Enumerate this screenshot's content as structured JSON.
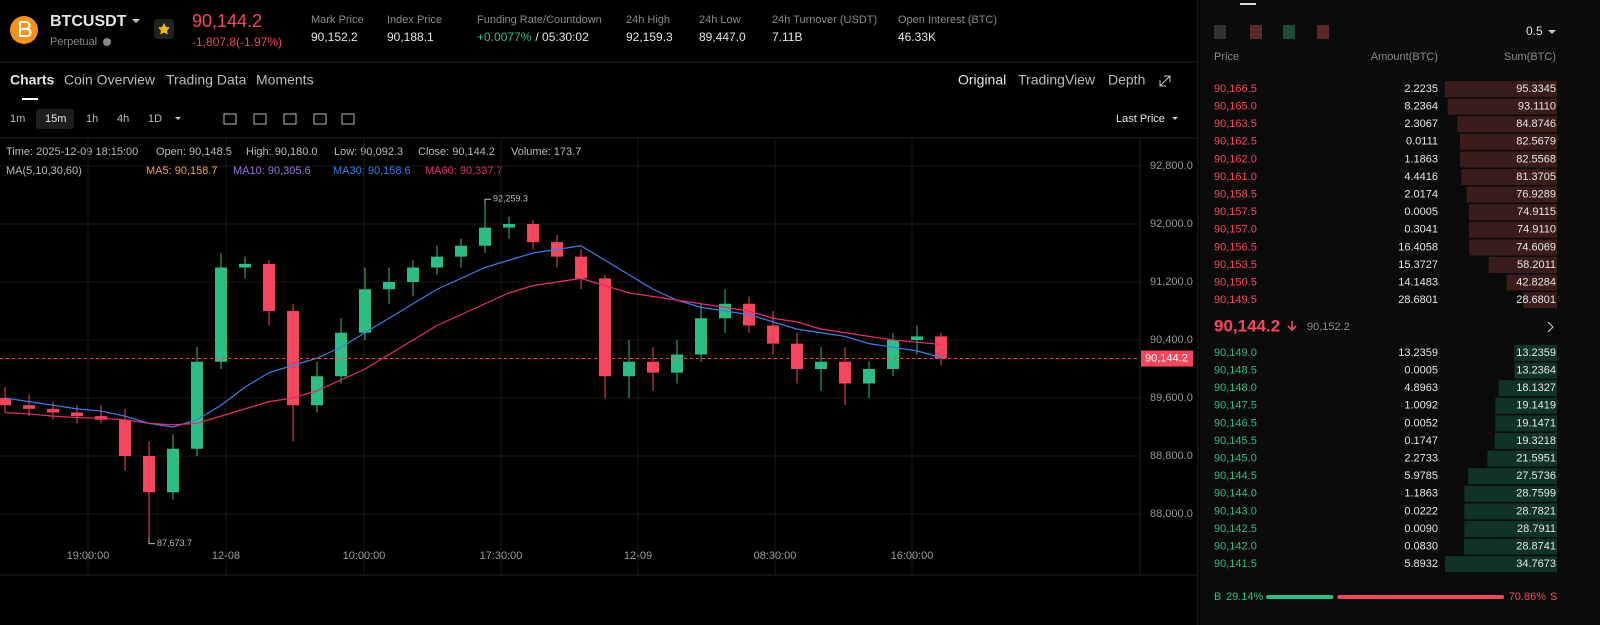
{
  "header": {
    "symbol": "BTCUSDT",
    "contract": "Perpetual",
    "price": "90,144.2",
    "change": "-1,807.8(-1.97%)",
    "stats": [
      {
        "label": "Mark Price",
        "value": "90,152.2"
      },
      {
        "label": "Index Price",
        "value": "90,188.1"
      },
      {
        "label": "Funding Rate/Countdown",
        "value": "+0.0077%",
        "extra": "/ 05:30:02"
      },
      {
        "label": "24h High",
        "value": "92,159.3"
      },
      {
        "label": "24h Low",
        "value": "89,447.0"
      },
      {
        "label": "24h Turnover (USDT)",
        "value": "7.11B"
      },
      {
        "label": "Open Interest (BTC)",
        "value": "46.33K"
      }
    ]
  },
  "tabs": [
    "Charts",
    "Coin Overview",
    "Trading Data",
    "Moments"
  ],
  "views": [
    "Original",
    "TradingView",
    "Depth"
  ],
  "intervals": [
    "1m",
    "15m",
    "1h",
    "4h",
    "1D"
  ],
  "price_type": "Last Price",
  "info": [
    "Time: 2025-12-09 18:15:00",
    "Open: 90,148.5",
    "High: 90,180.0",
    "Low: 90,092.3",
    "Close: 90,144.2",
    "Volume: 173.7"
  ],
  "ma_legend": {
    "title": "MA(5,10,30,60)",
    "items": [
      "MA5: 90,158.7",
      "MA10: 90,305.6",
      "MA30: 90,158.6",
      "MA60: 90,337.7"
    ]
  },
  "chart_data": {
    "type": "candlestick",
    "x_labels": [
      "19:00:00",
      "12-08",
      "10:00:00",
      "17:30:00",
      "12-09",
      "08:30:00",
      "16:00:00"
    ],
    "ylim": [
      87400,
      93200
    ],
    "yticks": [
      {
        "value": 88000,
        "label": "88,000.0"
      },
      {
        "value": 88800,
        "label": "88,800.0"
      },
      {
        "value": 89600,
        "label": "89,600.0"
      },
      {
        "value": 90400,
        "label": "90,400.0"
      },
      {
        "value": 91200,
        "label": "91,200.0"
      },
      {
        "value": 92000,
        "label": "92,000.0"
      },
      {
        "value": 92800,
        "label": "92,800.0"
      }
    ],
    "last_price": {
      "value": 90144.2,
      "label": "90,144.2"
    },
    "up_color": "#2ebd85",
    "down_color": "#f6465d",
    "open": [
      89600,
      89500,
      89450,
      89400,
      89350,
      89300,
      88800,
      88300,
      88900,
      90100,
      91400,
      91450,
      90800,
      89500,
      89900,
      90500,
      91100,
      91200,
      91400,
      91550,
      91700,
      91950,
      92000,
      91750,
      91550,
      91250,
      89900,
      90100,
      89950,
      90200,
      90700,
      90900,
      90600,
      90350,
      90000,
      90100,
      89800,
      90000,
      90400,
      90450
    ],
    "high": [
      89750,
      89650,
      89550,
      89500,
      89500,
      89450,
      89000,
      89100,
      90300,
      91600,
      91550,
      91500,
      90900,
      90100,
      90700,
      91400,
      91400,
      91500,
      91700,
      91800,
      92259.3,
      92100,
      92050,
      91850,
      91650,
      91300,
      90400,
      90300,
      90400,
      90900,
      91100,
      91000,
      90800,
      90500,
      90300,
      90300,
      90100,
      90500,
      90600,
      90500
    ],
    "low": [
      89400,
      89350,
      89300,
      89250,
      89250,
      88600,
      87673.7,
      88200,
      88800,
      90000,
      91250,
      90600,
      89000,
      89400,
      89800,
      90400,
      90900,
      91000,
      91300,
      91400,
      91600,
      91800,
      91650,
      91400,
      91100,
      89600,
      89600,
      89700,
      89800,
      90100,
      90500,
      90500,
      90200,
      89800,
      89700,
      89500,
      89600,
      89900,
      90200,
      90050
    ],
    "close": [
      89500,
      89450,
      89400,
      89350,
      89300,
      88800,
      88300,
      88900,
      90100,
      91400,
      91450,
      90800,
      89500,
      89900,
      90500,
      91100,
      91200,
      91400,
      91550,
      91700,
      91950,
      92000,
      91750,
      91550,
      91250,
      89900,
      90100,
      89950,
      90200,
      90700,
      90900,
      90600,
      90350,
      90000,
      90100,
      89800,
      90000,
      90400,
      90450,
      90144.2
    ],
    "series": [
      {
        "name": "MA30",
        "color": "#3d7ee6",
        "values": [
          89600,
          89550,
          89500,
          89450,
          89420,
          89350,
          89250,
          89200,
          89300,
          89500,
          89750,
          89950,
          90050,
          90150,
          90300,
          90500,
          90700,
          90900,
          91100,
          91250,
          91400,
          91500,
          91600,
          91650,
          91700,
          91500,
          91300,
          91100,
          90950,
          90850,
          90800,
          90750,
          90650,
          90550,
          90500,
          90450,
          90350,
          90300,
          90250,
          90158.6
        ]
      },
      {
        "name": "MA60",
        "color": "#e0306f",
        "values": [
          89400,
          89380,
          89350,
          89330,
          89320,
          89300,
          89250,
          89230,
          89250,
          89350,
          89450,
          89550,
          89600,
          89700,
          89850,
          90000,
          90200,
          90400,
          90600,
          90750,
          90900,
          91050,
          91150,
          91200,
          91250,
          91150,
          91050,
          91000,
          90950,
          90900,
          90850,
          90800,
          90700,
          90650,
          90550,
          90500,
          90450,
          90400,
          90370,
          90337.7
        ]
      }
    ],
    "annotations": [
      {
        "value": 92259.3,
        "label": "92,259.3"
      },
      {
        "value": 87673.7,
        "label": "87,673.7"
      }
    ]
  },
  "orderbook": {
    "step": "0.5",
    "columns": [
      "Price",
      "Amount(BTC)",
      "Sum(BTC)"
    ],
    "asks": [
      [
        "90,166.5",
        "2.2235",
        "95.3345"
      ],
      [
        "90,165.0",
        "8.2364",
        "93.1110"
      ],
      [
        "90,163.5",
        "2.3067",
        "84.8746"
      ],
      [
        "90,162.5",
        "0.0111",
        "82.5679"
      ],
      [
        "90,162.0",
        "1.1863",
        "82.5568"
      ],
      [
        "90,161.0",
        "4.4416",
        "81.3705"
      ],
      [
        "90,158.5",
        "2.0174",
        "76.9289"
      ],
      [
        "90,157.5",
        "0.0005",
        "74.9115"
      ],
      [
        "90,157.0",
        "0.3041",
        "74.9110"
      ],
      [
        "90,156.5",
        "16.4058",
        "74.6069"
      ],
      [
        "90,153.5",
        "15.3727",
        "58.2011"
      ],
      [
        "90,150.5",
        "14.1483",
        "42.8284"
      ],
      [
        "90,149.5",
        "28.6801",
        "28.6801"
      ]
    ],
    "mid_price": "90,144.2",
    "mark_price": "90,152.2",
    "bids": [
      [
        "90,149.0",
        "13.2359",
        "13.2359"
      ],
      [
        "90,148.5",
        "0.0005",
        "13.2364"
      ],
      [
        "90,148.0",
        "4.8963",
        "18.1327"
      ],
      [
        "90,147.5",
        "1.0092",
        "19.1419"
      ],
      [
        "90,146.5",
        "0.0052",
        "19.1471"
      ],
      [
        "90,145.5",
        "0.1747",
        "19.3218"
      ],
      [
        "90,145.0",
        "2.2733",
        "21.5951"
      ],
      [
        "90,144.5",
        "5.9785",
        "27.5736"
      ],
      [
        "90,144.0",
        "1.1863",
        "28.7599"
      ],
      [
        "90,143.0",
        "0.0222",
        "28.7821"
      ],
      [
        "90,142.5",
        "0.0090",
        "28.7911"
      ],
      [
        "90,142.0",
        "0.0830",
        "28.8741"
      ],
      [
        "90,141.5",
        "5.8932",
        "34.7673"
      ]
    ],
    "buy_label": "B",
    "buy_ratio": {
      "value": 29.14,
      "label": "29.14%"
    },
    "sell_ratio": {
      "value": 70.86,
      "label": "70.86%"
    },
    "sell_label": "S"
  }
}
